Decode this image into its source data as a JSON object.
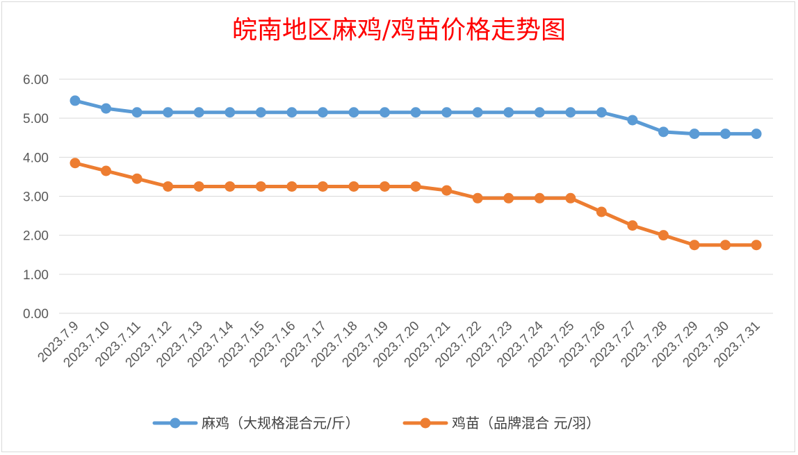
{
  "chart_data": {
    "type": "line",
    "title": "皖南地区麻鸡/鸡苗价格走势图",
    "categories": [
      "2023.7.9",
      "2023.7.10",
      "2023.7.11",
      "2023.7.12",
      "2023.7.13",
      "2023.7.14",
      "2023.7.15",
      "2023.7.16",
      "2023.7.17",
      "2023.7.18",
      "2023.7.19",
      "2023.7.20",
      "2023.7.21",
      "2023.7.22",
      "2023.7.23",
      "2023.7.24",
      "2023.7.25",
      "2023.7.26",
      "2023.7.27",
      "2023.7.28",
      "2023.7.29",
      "2023.7.30",
      "2023.7.31"
    ],
    "series": [
      {
        "name": "麻鸡（大规格混合元/斤）",
        "color": "#5b9bd5",
        "values": [
          5.45,
          5.25,
          5.15,
          5.15,
          5.15,
          5.15,
          5.15,
          5.15,
          5.15,
          5.15,
          5.15,
          5.15,
          5.15,
          5.15,
          5.15,
          5.15,
          5.15,
          5.15,
          4.95,
          4.65,
          4.6,
          4.6,
          4.6
        ]
      },
      {
        "name": "鸡苗（品牌混合 元/羽）",
        "color": "#ed7d31",
        "values": [
          3.85,
          3.65,
          3.45,
          3.25,
          3.25,
          3.25,
          3.25,
          3.25,
          3.25,
          3.25,
          3.25,
          3.25,
          3.15,
          2.95,
          2.95,
          2.95,
          2.95,
          2.6,
          2.25,
          2.0,
          1.75,
          1.75,
          1.75
        ]
      }
    ],
    "yticks": [
      "0.00",
      "1.00",
      "2.00",
      "3.00",
      "4.00",
      "5.00",
      "6.00"
    ],
    "ylim": [
      0,
      6
    ],
    "grid": true,
    "legend_position": "bottom",
    "gridline_color": "#d9d9d9"
  }
}
